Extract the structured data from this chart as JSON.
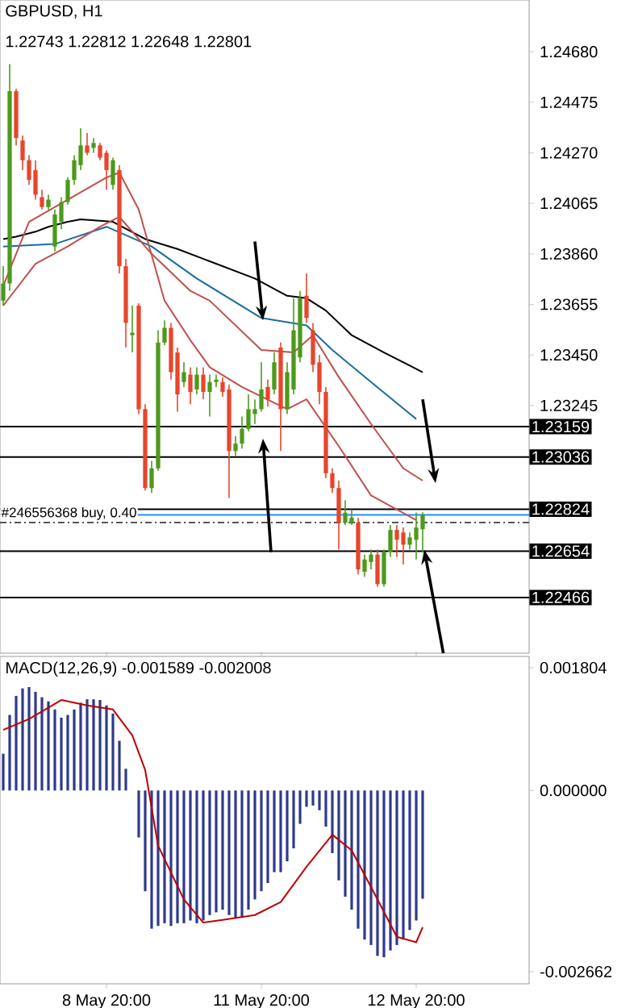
{
  "chart_data": [
    {
      "type": "candlestick",
      "title": "GBPUSD, H1",
      "subtitle": "1.22743 1.22812 1.22648 1.22801",
      "categories": [
        null,
        null,
        null,
        null,
        null,
        null,
        null,
        null,
        null,
        null,
        null,
        null,
        null,
        null,
        null,
        null,
        null,
        null,
        null,
        null,
        null,
        null,
        null,
        null,
        null,
        null,
        null,
        null,
        null,
        null,
        null,
        null,
        null,
        null,
        null,
        null,
        null,
        null,
        null,
        null,
        null,
        null,
        null,
        null,
        null,
        null,
        null,
        null,
        null,
        null,
        null,
        null,
        null,
        null,
        null,
        null,
        null,
        null,
        null,
        null,
        null,
        null,
        null,
        null,
        null,
        null,
        null,
        null,
        null,
        null,
        null,
        null,
        null,
        null,
        null,
        null,
        null,
        null,
        null,
        null,
        null,
        null
      ],
      "ohlc": [
        [
          1.2367,
          1.2381,
          1.2365,
          1.2374
        ],
        [
          1.2374,
          1.2463,
          1.2371,
          1.2452
        ],
        [
          1.2452,
          1.2453,
          1.243,
          1.2433
        ],
        [
          1.2432,
          1.2434,
          1.242,
          1.2424
        ],
        [
          1.2424,
          1.2426,
          1.2414,
          1.2416
        ],
        [
          1.242,
          1.2424,
          1.2408,
          1.241
        ],
        [
          1.2409,
          1.2412,
          1.2404,
          1.2405
        ],
        [
          1.2405,
          1.241,
          1.2404,
          1.2408
        ],
        [
          1.2389,
          1.2404,
          1.2387,
          1.2402
        ],
        [
          1.2399,
          1.2409,
          1.2396,
          1.2407
        ],
        [
          1.2407,
          1.2417,
          1.2406,
          1.2416
        ],
        [
          1.2416,
          1.2426,
          1.2414,
          1.2424
        ],
        [
          1.2422,
          1.2437,
          1.242,
          1.243
        ],
        [
          1.243,
          1.2435,
          1.2426,
          1.2427
        ],
        [
          1.2429,
          1.2433,
          1.2427,
          1.2431
        ],
        [
          1.243,
          1.2431,
          1.2424,
          1.2425
        ],
        [
          1.2427,
          1.2428,
          1.2412,
          1.242
        ],
        [
          1.2414,
          1.2425,
          1.2412,
          1.2424
        ],
        [
          1.242,
          1.2422,
          1.2378,
          1.2381
        ],
        [
          1.2381,
          1.2384,
          1.2348,
          1.2358
        ],
        [
          1.2353,
          1.2365,
          1.2346,
          1.2354
        ],
        [
          1.2365,
          1.2366,
          1.2321,
          1.2323
        ],
        [
          1.2323,
          1.2325,
          1.229,
          1.2291
        ],
        [
          1.2291,
          1.2302,
          1.2289,
          1.2299
        ],
        [
          1.2299,
          1.2355,
          1.2298,
          1.235
        ],
        [
          1.235,
          1.2359,
          1.2349,
          1.2356
        ],
        [
          1.2356,
          1.2358,
          1.2335,
          1.2338
        ],
        [
          1.2346,
          1.2348,
          1.2322,
          1.2329
        ],
        [
          1.2334,
          1.2342,
          1.2332,
          1.2338
        ],
        [
          1.2337,
          1.234,
          1.2325,
          1.233
        ],
        [
          1.2331,
          1.234,
          1.2329,
          1.2337
        ],
        [
          1.2337,
          1.234,
          1.2327,
          1.233
        ],
        [
          1.233,
          1.2337,
          1.232,
          1.2334
        ],
        [
          1.2334,
          1.2337,
          1.2332,
          1.2335
        ],
        [
          1.2334,
          1.2336,
          1.2328,
          1.233
        ],
        [
          1.2331,
          1.2333,
          1.2287,
          1.2306
        ],
        [
          1.2306,
          1.2312,
          1.2304,
          1.2309
        ],
        [
          1.2309,
          1.232,
          1.2307,
          1.2315
        ],
        [
          1.2315,
          1.2329,
          1.2314,
          1.2323
        ],
        [
          1.2321,
          1.2327,
          1.2317,
          1.2323
        ],
        [
          1.2323,
          1.2342,
          1.2322,
          1.2331
        ],
        [
          1.2332,
          1.2335,
          1.2324,
          1.2327
        ],
        [
          1.2331,
          1.2346,
          1.2329,
          1.2342
        ],
        [
          1.2348,
          1.235,
          1.2306,
          1.2323
        ],
        [
          1.2323,
          1.2342,
          1.2321,
          1.2338
        ],
        [
          1.2331,
          1.2368,
          1.2329,
          1.2355
        ],
        [
          1.2344,
          1.2371,
          1.2342,
          1.2368
        ],
        [
          1.2369,
          1.2378,
          1.2358,
          1.236
        ],
        [
          1.2355,
          1.2358,
          1.2338,
          1.2341
        ],
        [
          1.2342,
          1.2345,
          1.2325,
          1.233
        ],
        [
          1.233,
          1.2332,
          1.2295,
          1.2297
        ],
        [
          1.2297,
          1.2299,
          1.2289,
          1.2291
        ],
        [
          1.2291,
          1.2294,
          1.2266,
          1.2277
        ],
        [
          1.2277,
          1.2286,
          1.2276,
          1.2281
        ],
        [
          1.2277,
          1.2282,
          1.2276,
          1.2279
        ],
        [
          1.2277,
          1.2279,
          1.2256,
          1.2258
        ],
        [
          1.2257,
          1.2264,
          1.2255,
          1.2262
        ],
        [
          1.2261,
          1.2266,
          1.2258,
          1.2264
        ],
        [
          1.2264,
          1.2266,
          1.2251,
          1.2252
        ],
        [
          1.2252,
          1.2266,
          1.2251,
          1.2265
        ],
        [
          1.2265,
          1.2276,
          1.2263,
          1.2274
        ],
        [
          1.2274,
          1.2276,
          1.2263,
          1.227
        ],
        [
          1.2273,
          1.2275,
          1.226,
          1.2268
        ],
        [
          1.2268,
          1.2273,
          1.2266,
          1.2271
        ],
        [
          1.227,
          1.2281,
          1.2262,
          1.2275
        ],
        [
          1.22743,
          1.22812,
          1.22648,
          1.22801
        ],
        null,
        null,
        null,
        null,
        null,
        null,
        null,
        null,
        null,
        null,
        null,
        null,
        null,
        null,
        null,
        null
      ],
      "colors": [
        "#4c9a1c",
        "#4c9a1c",
        "#e8452c",
        "#e8452c",
        "#e8452c",
        "#e8452c",
        "#e8452c",
        "#4c9a1c",
        "#4c9a1c",
        "#4c9a1c",
        "#4c9a1c",
        "#4c9a1c",
        "#4c9a1c",
        "#e8452c",
        "#4c9a1c",
        "#e8452c",
        "#e8452c",
        "#4c9a1c",
        "#e8452c",
        "#e8452c",
        "#4c9a1c",
        "#e8452c",
        "#e8452c",
        "#4c9a1c",
        "#4c9a1c",
        "#4c9a1c",
        "#e8452c",
        "#e8452c",
        "#4c9a1c",
        "#e8452c",
        "#4c9a1c",
        "#e8452c",
        "#4c9a1c",
        "#4c9a1c",
        "#e8452c",
        "#e8452c",
        "#4c9a1c",
        "#4c9a1c",
        "#4c9a1c",
        "#4c9a1c",
        "#4c9a1c",
        "#e8452c",
        "#4c9a1c",
        "#e8452c",
        "#4c9a1c",
        "#4c9a1c",
        "#4c9a1c",
        "#e8452c",
        "#e8452c",
        "#e8452c",
        "#e8452c",
        "#e8452c",
        "#e8452c",
        "#4c9a1c",
        "#4c9a1c",
        "#e8452c",
        "#4c9a1c",
        "#4c9a1c",
        "#e8452c",
        "#4c9a1c",
        "#4c9a1c",
        "#e8452c",
        "#e8452c",
        "#4c9a1c",
        "#4c9a1c",
        "#4c9a1c",
        null,
        null,
        null,
        null,
        null,
        null,
        null,
        null,
        null,
        null,
        null,
        null,
        null,
        null,
        null,
        null
      ],
      "series": [
        {
          "type": "line",
          "color": "#000000",
          "values": [
            1.2392,
            null,
            1.2393,
            null,
            null,
            1.2395,
            null,
            1.2397,
            null,
            null,
            1.2399,
            null,
            1.24,
            null,
            null,
            null,
            null,
            1.2399,
            null,
            null,
            null,
            null,
            1.2392,
            null,
            null,
            null,
            null,
            1.2388,
            null,
            null,
            null,
            null,
            1.2383,
            null,
            null,
            null,
            null,
            null,
            null,
            1.2376,
            null,
            null,
            null,
            null,
            1.2369,
            null,
            null,
            1.2368,
            null,
            null,
            1.2363,
            null,
            null,
            null,
            1.2353,
            null,
            null,
            null,
            null,
            1.2346,
            null,
            null,
            null,
            null,
            null,
            1.2338,
            null,
            null,
            null,
            null,
            null,
            null,
            null,
            null,
            null,
            null,
            null,
            null,
            null,
            null,
            null,
            null
          ]
        },
        {
          "type": "line",
          "color": "#1a6e9e",
          "values": [
            1.2389,
            null,
            null,
            null,
            null,
            null,
            null,
            null,
            1.239,
            null,
            null,
            null,
            null,
            null,
            null,
            null,
            1.2397,
            null,
            null,
            null,
            null,
            null,
            null,
            1.2389,
            null,
            null,
            null,
            null,
            null,
            null,
            1.2376,
            null,
            null,
            null,
            null,
            null,
            null,
            null,
            null,
            null,
            1.236,
            null,
            null,
            null,
            null,
            null,
            null,
            1.2357,
            null,
            null,
            null,
            1.2347,
            null,
            null,
            null,
            null,
            null,
            1.2334,
            null,
            null,
            null,
            null,
            null,
            null,
            1.2319,
            null,
            null,
            null,
            null,
            null,
            null,
            null,
            null,
            null,
            null,
            null,
            null,
            null,
            null,
            null,
            null,
            null
          ]
        },
        {
          "type": "line",
          "color": "#c0504d",
          "values": [
            1.2365,
            null,
            null,
            null,
            null,
            1.2382,
            null,
            null,
            null,
            null,
            1.2389,
            null,
            null,
            null,
            null,
            1.2397,
            null,
            null,
            1.2401,
            null,
            null,
            null,
            null,
            1.2386,
            null,
            null,
            null,
            null,
            null,
            1.2371,
            null,
            null,
            1.2367,
            null,
            null,
            null,
            null,
            null,
            null,
            null,
            1.2347,
            null,
            null,
            null,
            null,
            1.2346,
            null,
            null,
            1.2353,
            null,
            null,
            null,
            1.2336,
            null,
            null,
            null,
            null,
            1.2317,
            null,
            null,
            null,
            null,
            1.2299,
            null,
            null,
            1.2294,
            null,
            null,
            null,
            null,
            null,
            null,
            null,
            null,
            null,
            null,
            null,
            null,
            null,
            null,
            null,
            null
          ]
        },
        {
          "type": "line",
          "color": "#c0504d",
          "values": [
            1.2373,
            null,
            null,
            null,
            1.2399,
            null,
            null,
            null,
            null,
            null,
            1.2408,
            null,
            null,
            null,
            null,
            null,
            1.2417,
            null,
            1.2419,
            null,
            null,
            1.2404,
            null,
            null,
            null,
            1.2367,
            null,
            null,
            null,
            1.2351,
            null,
            null,
            1.234,
            null,
            null,
            null,
            null,
            1.2332,
            null,
            null,
            null,
            null,
            null,
            null,
            1.2323,
            null,
            null,
            1.2327,
            null,
            null,
            null,
            null,
            1.2308,
            null,
            null,
            null,
            null,
            1.2288,
            null,
            null,
            null,
            null,
            null,
            null,
            1.2278,
            null,
            null,
            null,
            null,
            null,
            null,
            null,
            null,
            null,
            null,
            null,
            null,
            null,
            null,
            null,
            null,
            null
          ]
        }
      ],
      "ylim": [
        1.2224,
        1.2489
      ],
      "yticks": [
        {
          "value": 1.2468,
          "label": "1.24680"
        },
        {
          "value": 1.24475,
          "label": "1.24475"
        },
        {
          "value": 1.2427,
          "label": "1.24270"
        },
        {
          "value": 1.24065,
          "label": "1.24065"
        },
        {
          "value": 1.2386,
          "label": "1.23860"
        },
        {
          "value": 1.23655,
          "label": "1.23655"
        },
        {
          "value": 1.2345,
          "label": "1.23450"
        },
        {
          "value": 1.23245,
          "label": "1.23245"
        }
      ],
      "tick_labels": "y",
      "ref_lines": [
        {
          "axis": "y",
          "value": 1.23159,
          "label": "1.23159",
          "color": "#000000",
          "line_style": "solid"
        },
        {
          "axis": "y",
          "value": 1.23036,
          "label": "1.23036",
          "color": "#000000",
          "line_style": "solid"
        },
        {
          "axis": "y",
          "value": 1.22824,
          "label": "1.22824",
          "color": "#000000",
          "line_style": "solid"
        },
        {
          "axis": "y",
          "value": 1.22801,
          "color": "#1e90ff",
          "line_style": "solid"
        },
        {
          "axis": "y",
          "value": 1.2277,
          "label": "#246556368 buy, 0.40",
          "color": "#555555",
          "line_style": "dashed"
        },
        {
          "axis": "y",
          "value": 1.22654,
          "label": "1.22654",
          "color": "#000000",
          "line_style": "solid"
        },
        {
          "axis": "y",
          "value": 1.22466,
          "label": "1.22466",
          "color": "#000000",
          "line_style": "solid"
        }
      ]
    },
    {
      "type": "bar",
      "title": "MACD(12,26,9) -0.001589 -0.002008",
      "categories": [
        null,
        null,
        null,
        null,
        null,
        null,
        null,
        null,
        null,
        null,
        null,
        null,
        null,
        null,
        null,
        null,
        "8 May 20:00",
        null,
        null,
        null,
        null,
        null,
        null,
        null,
        null,
        null,
        null,
        null,
        null,
        null,
        null,
        null,
        null,
        null,
        null,
        null,
        null,
        null,
        null,
        null,
        "11 May 20:00",
        null,
        null,
        null,
        null,
        null,
        null,
        null,
        null,
        null,
        null,
        null,
        null,
        null,
        null,
        null,
        null,
        null,
        null,
        null,
        null,
        null,
        null,
        null,
        "12 May 20:00",
        null,
        null,
        null,
        null,
        null,
        null,
        null,
        null,
        null,
        null,
        null,
        null,
        null,
        null,
        null,
        null,
        null
      ],
      "series": [
        {
          "color": "#2e3a8c",
          "values": [
            0.00054,
            0.00111,
            0.00139,
            0.0015,
            0.00152,
            0.00145,
            0.00137,
            0.00131,
            0.00119,
            0.00107,
            0.00111,
            0.00119,
            0.00129,
            0.00134,
            0.00134,
            0.00133,
            0.00125,
            0.00113,
            0.00073,
            0.00032,
            0.0,
            -0.00069,
            -0.00148,
            -0.00203,
            -0.00199,
            -0.00195,
            -0.00199,
            -0.00195,
            -0.00195,
            -0.00191,
            -0.00195,
            -0.00191,
            -0.00183,
            -0.00179,
            -0.00175,
            -0.00183,
            -0.00187,
            -0.00187,
            -0.00175,
            -0.0016,
            -0.00148,
            -0.00136,
            -0.0012,
            -0.0012,
            -0.00104,
            -0.00085,
            -0.00049,
            -0.00024,
            -0.00022,
            -0.00029,
            -0.00053,
            -0.00092,
            -0.00132,
            -0.00156,
            -0.00175,
            -0.00203,
            -0.00219,
            -0.00227,
            -0.00243,
            -0.00245,
            -0.00235,
            -0.00227,
            -0.00219,
            -0.00205,
            -0.00191,
            -0.00159,
            null,
            null,
            null,
            null,
            null,
            null,
            null,
            null,
            null,
            null,
            null,
            null,
            null,
            null,
            null,
            null
          ]
        },
        {
          "type": "line",
          "color": "#c00000",
          "values": [
            0.00089,
            null,
            null,
            null,
            0.00105,
            null,
            null,
            null,
            null,
            0.00133,
            null,
            null,
            null,
            0.00125,
            null,
            null,
            null,
            0.00119,
            null,
            null,
            0.00081,
            null,
            0.0003,
            null,
            -0.00081,
            null,
            null,
            null,
            -0.0016,
            null,
            null,
            -0.00194,
            null,
            null,
            -0.0019,
            null,
            null,
            null,
            null,
            -0.00183,
            null,
            null,
            null,
            -0.00164,
            null,
            null,
            null,
            -0.00112,
            null,
            null,
            null,
            -0.00065,
            null,
            null,
            -0.00088,
            null,
            null,
            null,
            -0.0016,
            null,
            null,
            -0.00215,
            null,
            null,
            -0.00223,
            -0.00201,
            null,
            null,
            null,
            null,
            null,
            null,
            null,
            null,
            null,
            null,
            null,
            null,
            null,
            null,
            null,
            null
          ]
        }
      ],
      "ylim": [
        -0.00284,
        0.00197
      ],
      "yticks": [
        {
          "value": 0.001804,
          "label": "0.001804"
        },
        {
          "value": 0,
          "label": "0.000000"
        },
        {
          "value": -0.002662,
          "label": "-0.002662"
        }
      ]
    }
  ]
}
